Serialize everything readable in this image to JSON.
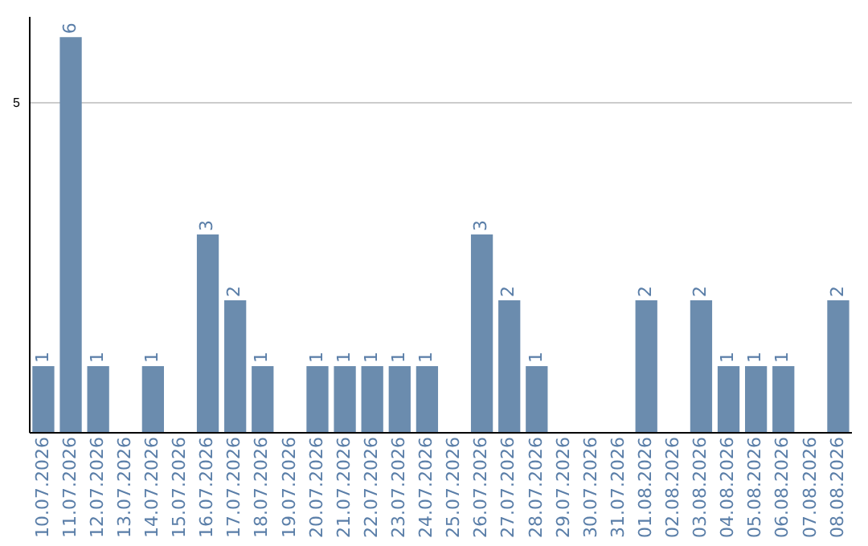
{
  "chart_data": {
    "type": "bar",
    "categories": [
      "10.07.2026",
      "11.07.2026",
      "12.07.2026",
      "13.07.2026",
      "14.07.2026",
      "15.07.2026",
      "16.07.2026",
      "17.07.2026",
      "18.07.2026",
      "19.07.2026",
      "20.07.2026",
      "21.07.2026",
      "22.07.2026",
      "23.07.2026",
      "24.07.2026",
      "25.07.2026",
      "26.07.2026",
      "27.07.2026",
      "28.07.2026",
      "29.07.2026",
      "30.07.2026",
      "31.07.2026",
      "01.08.2026",
      "02.08.2026",
      "03.08.2026",
      "04.08.2026",
      "05.08.2026",
      "06.08.2026",
      "07.08.2026",
      "08.08.2026"
    ],
    "values": [
      1,
      6,
      1,
      0,
      1,
      0,
      3,
      2,
      1,
      0,
      1,
      1,
      1,
      1,
      1,
      0,
      3,
      2,
      1,
      0,
      0,
      0,
      2,
      0,
      2,
      1,
      1,
      1,
      0,
      2
    ],
    "value_labels": [
      "1",
      "6",
      "1",
      null,
      "1",
      null,
      "3",
      "2",
      "1",
      null,
      "1",
      "1",
      "1",
      "1",
      "1",
      null,
      "3",
      "2",
      "1",
      null,
      null,
      null,
      "2",
      null,
      "2",
      "1",
      "1",
      "1",
      null,
      "2"
    ],
    "color": "#6b8cae",
    "ylim": [
      0,
      6.3
    ],
    "yticks": [
      5
    ],
    "grid": "y"
  }
}
